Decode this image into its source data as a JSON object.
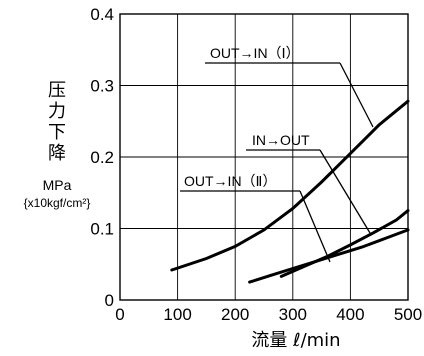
{
  "chart_data": {
    "type": "line",
    "title": "",
    "xlabel": "流量 ℓ/min",
    "ylabel_main": "压力下降",
    "ylabel_unit": "MPa",
    "ylabel_unit_alt": "{x10kgf/cm²}",
    "xlim": [
      0,
      500
    ],
    "ylim": [
      0,
      0.4
    ],
    "x_ticks": [
      0,
      100,
      200,
      300,
      400,
      500
    ],
    "x_tick_labels": [
      "0",
      "100",
      "200",
      "300",
      "400",
      "500"
    ],
    "y_ticks": [
      0,
      0.1,
      0.2,
      0.3,
      0.4
    ],
    "y_tick_labels": [
      "0",
      "0.1",
      "0.2",
      "0.3",
      "0.4"
    ],
    "grid": true,
    "series": [
      {
        "name": "OUT→IN（Ⅰ）",
        "x": [
          90,
          150,
          200,
          250,
          300,
          350,
          400,
          450,
          500
        ],
        "y": [
          0.042,
          0.058,
          0.075,
          0.098,
          0.128,
          0.165,
          0.205,
          0.245,
          0.278
        ]
      },
      {
        "name": "IN→OUT",
        "x": [
          280,
          320,
          360,
          400,
          440,
          480,
          500
        ],
        "y": [
          0.033,
          0.047,
          0.061,
          0.077,
          0.094,
          0.112,
          0.125
        ]
      },
      {
        "name": "OUT→IN（Ⅱ）",
        "x": [
          225,
          260,
          300,
          340,
          380,
          420,
          460,
          500
        ],
        "y": [
          0.025,
          0.034,
          0.044,
          0.054,
          0.064,
          0.074,
          0.086,
          0.098
        ]
      }
    ]
  }
}
